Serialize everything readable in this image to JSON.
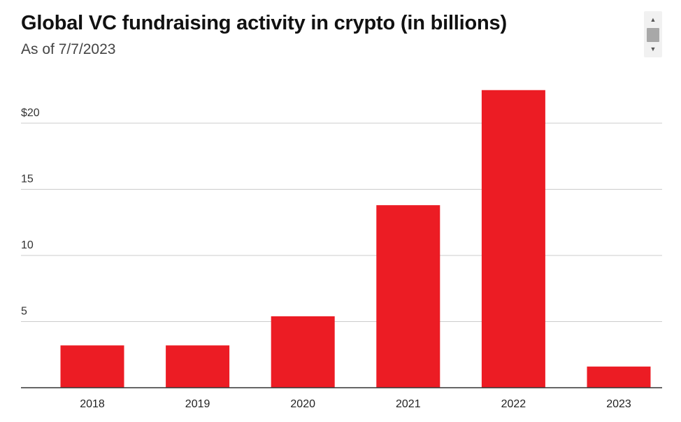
{
  "header": {
    "title": "Global VC fundraising activity in crypto (in billions)",
    "subtitle": "As of 7/7/2023"
  },
  "scrollbar": {
    "up_icon": "scroll-up-arrow-icon",
    "down_icon": "scroll-down-arrow-icon"
  },
  "colors": {
    "bar": "#ec1c24",
    "grid": "#cccccc",
    "axis": "#333333"
  },
  "chart_data": {
    "type": "bar",
    "title": "Global VC fundraising activity in crypto (in billions)",
    "subtitle": "As of 7/7/2023",
    "xlabel": "",
    "ylabel": "",
    "categories": [
      "2018",
      "2019",
      "2020",
      "2021",
      "2022",
      "2023"
    ],
    "values": [
      3.2,
      3.2,
      5.4,
      13.8,
      22.5,
      1.6
    ],
    "ylim": [
      0,
      24
    ],
    "yticks": [
      5,
      10,
      15,
      20
    ],
    "ytick_labels": [
      "5",
      "10",
      "15",
      "$20"
    ],
    "grid": true,
    "legend": "none"
  }
}
